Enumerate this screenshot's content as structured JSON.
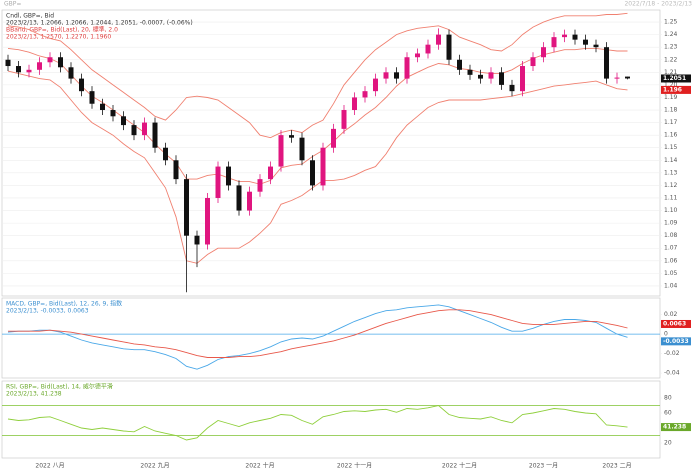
{
  "header": {
    "left": "GBP=",
    "right": "2022/7/18 - 2023/2/13"
  },
  "chart_data": [
    {
      "type": "candlestick",
      "legend": [
        "Cndl, GBP=, Bid",
        "2023/2/13, 1.2066, 1.2066, 1.2044, 1.2051, -0.0007, (-0.06%)",
        "BBand, GBP=, Bid(Last), 20, 標準, 2.0",
        "2023/2/13, 1.2570, 1.2270, 1.1960"
      ],
      "categories": [
        null,
        null,
        null,
        null,
        "2022 八月",
        null,
        null,
        null,
        null,
        null,
        null,
        null,
        null,
        null,
        "2022 九月",
        null,
        null,
        null,
        null,
        null,
        null,
        null,
        null,
        null,
        "2022 十月",
        null,
        null,
        null,
        null,
        null,
        null,
        null,
        null,
        "2022 十一月",
        null,
        null,
        null,
        null,
        null,
        null,
        null,
        null,
        null,
        "2022 十二月",
        null,
        null,
        null,
        null,
        null,
        null,
        null,
        "2023 一月",
        null,
        null,
        null,
        null,
        null,
        null,
        "2023 二月",
        null
      ],
      "open": [
        1.22,
        1.215,
        1.21,
        1.212,
        1.218,
        1.222,
        1.214,
        1.205,
        1.195,
        1.185,
        1.18,
        1.175,
        1.168,
        1.16,
        1.17,
        1.15,
        1.14,
        1.125,
        1.08,
        1.073,
        1.11,
        1.135,
        1.12,
        1.1,
        1.115,
        1.125,
        1.135,
        1.16,
        1.158,
        1.14,
        1.12,
        1.15,
        1.165,
        1.18,
        1.19,
        1.195,
        1.205,
        1.21,
        1.205,
        1.222,
        1.225,
        1.232,
        1.24,
        1.22,
        1.212,
        1.208,
        1.205,
        1.21,
        1.2,
        1.195,
        1.215,
        1.222,
        1.23,
        1.238,
        1.24,
        1.236,
        1.232,
        1.23,
        1.205,
        1.2066
      ],
      "high": [
        1.224,
        1.219,
        1.216,
        1.222,
        1.226,
        1.226,
        1.218,
        1.209,
        1.199,
        1.189,
        1.184,
        1.179,
        1.172,
        1.174,
        1.174,
        1.154,
        1.144,
        1.129,
        1.084,
        1.114,
        1.139,
        1.139,
        1.124,
        1.119,
        1.129,
        1.139,
        1.164,
        1.164,
        1.162,
        1.144,
        1.154,
        1.169,
        1.184,
        1.194,
        1.199,
        1.209,
        1.214,
        1.214,
        1.226,
        1.229,
        1.236,
        1.245,
        1.244,
        1.224,
        1.216,
        1.212,
        1.214,
        1.214,
        1.204,
        1.219,
        1.226,
        1.234,
        1.242,
        1.244,
        1.244,
        1.24,
        1.236,
        1.234,
        1.2098,
        1.2066
      ],
      "low": [
        1.211,
        1.206,
        1.206,
        1.208,
        1.214,
        1.21,
        1.201,
        1.191,
        1.181,
        1.176,
        1.171,
        1.164,
        1.156,
        1.156,
        1.146,
        1.136,
        1.121,
        1.035,
        1.055,
        1.069,
        1.106,
        1.116,
        1.096,
        1.096,
        1.111,
        1.121,
        1.131,
        1.154,
        1.136,
        1.116,
        1.116,
        1.146,
        1.161,
        1.176,
        1.186,
        1.191,
        1.201,
        1.201,
        1.201,
        1.218,
        1.221,
        1.228,
        1.216,
        1.208,
        1.204,
        1.201,
        1.201,
        1.196,
        1.191,
        1.191,
        1.211,
        1.218,
        1.226,
        1.234,
        1.232,
        1.228,
        1.226,
        1.201,
        1.201,
        1.2044
      ],
      "close": [
        1.215,
        1.21,
        1.212,
        1.218,
        1.222,
        1.214,
        1.205,
        1.195,
        1.185,
        1.18,
        1.175,
        1.168,
        1.16,
        1.17,
        1.15,
        1.14,
        1.125,
        1.08,
        1.073,
        1.11,
        1.135,
        1.12,
        1.1,
        1.115,
        1.125,
        1.135,
        1.16,
        1.158,
        1.14,
        1.12,
        1.15,
        1.165,
        1.18,
        1.19,
        1.195,
        1.205,
        1.21,
        1.205,
        1.222,
        1.225,
        1.232,
        1.24,
        1.22,
        1.212,
        1.208,
        1.205,
        1.21,
        1.2,
        1.195,
        1.215,
        1.222,
        1.23,
        1.238,
        1.24,
        1.236,
        1.232,
        1.23,
        1.205,
        1.2058,
        1.2051
      ],
      "up_color": "#e0157f",
      "down_color": "#111111",
      "series": [
        {
          "color": "#f08070",
          "values": [
            1.247,
            1.246,
            1.244,
            1.24,
            1.237,
            1.235,
            1.228,
            1.22,
            1.212,
            1.206,
            1.2,
            1.194,
            1.188,
            1.182,
            1.175,
            1.172,
            1.18,
            1.19,
            1.191,
            1.19,
            1.188,
            1.182,
            1.176,
            1.17,
            1.16,
            1.158,
            1.162,
            1.164,
            1.162,
            1.168,
            1.172,
            1.185,
            1.2,
            1.21,
            1.22,
            1.228,
            1.234,
            1.24,
            1.243,
            1.245,
            1.246,
            1.247,
            1.244,
            1.238,
            1.235,
            1.232,
            1.228,
            1.227,
            1.232,
            1.24,
            1.246,
            1.25,
            1.253,
            1.255,
            1.255,
            1.255,
            1.255,
            1.256,
            1.256,
            1.257
          ]
        },
        {
          "color": "#f08070",
          "values": [
            1.229,
            1.228,
            1.226,
            1.223,
            1.221,
            1.217,
            1.208,
            1.199,
            1.191,
            1.186,
            1.18,
            1.174,
            1.168,
            1.162,
            1.153,
            1.145,
            1.138,
            1.125,
            1.125,
            1.128,
            1.129,
            1.126,
            1.123,
            1.123,
            1.121,
            1.124,
            1.134,
            1.136,
            1.137,
            1.143,
            1.148,
            1.155,
            1.163,
            1.169,
            1.176,
            1.182,
            1.19,
            1.199,
            1.206,
            1.21,
            1.214,
            1.217,
            1.216,
            1.213,
            1.212,
            1.21,
            1.209,
            1.209,
            1.212,
            1.217,
            1.221,
            1.224,
            1.226,
            1.228,
            1.228,
            1.229,
            1.229,
            1.228,
            1.227,
            1.227
          ]
        },
        {
          "color": "#f08070",
          "values": [
            1.211,
            1.209,
            1.207,
            1.205,
            1.204,
            1.198,
            1.188,
            1.178,
            1.17,
            1.165,
            1.16,
            1.153,
            1.147,
            1.142,
            1.13,
            1.118,
            1.095,
            1.06,
            1.058,
            1.065,
            1.07,
            1.07,
            1.07,
            1.075,
            1.082,
            1.09,
            1.105,
            1.108,
            1.112,
            1.118,
            1.124,
            1.124,
            1.125,
            1.128,
            1.132,
            1.135,
            1.145,
            1.158,
            1.168,
            1.175,
            1.182,
            1.186,
            1.188,
            1.188,
            1.188,
            1.188,
            1.189,
            1.19,
            1.191,
            1.193,
            1.195,
            1.197,
            1.199,
            1.2,
            1.201,
            1.202,
            1.203,
            1.2,
            1.197,
            1.196
          ]
        }
      ],
      "ylim": [
        1.032,
        1.258
      ],
      "yticks": [
        1.04,
        1.05,
        1.06,
        1.07,
        1.08,
        1.09,
        {
          "value": 1.1,
          "label": "1.10"
        },
        1.11,
        1.12,
        1.13,
        1.14,
        1.15,
        1.16,
        1.17,
        1.18,
        1.19,
        {
          "value": 1.2,
          "label": "1.20"
        },
        1.21,
        1.22,
        1.23,
        1.24,
        1.25
      ],
      "grid": true
    },
    {
      "type": "line",
      "legend": [
        "MACD, GBP=, Bid(Last), 12, 26, 9, 指数",
        "2023/2/13, -0.0033, 0.0063"
      ],
      "series": [
        {
          "color": "#4aa8e8",
          "values": [
            0.002,
            0.003,
            0.003,
            0.004,
            0.004,
            0.002,
            -0.002,
            -0.006,
            -0.009,
            -0.011,
            -0.013,
            -0.015,
            -0.016,
            -0.016,
            -0.018,
            -0.021,
            -0.025,
            -0.033,
            -0.036,
            -0.032,
            -0.026,
            -0.023,
            -0.022,
            -0.02,
            -0.017,
            -0.013,
            -0.008,
            -0.005,
            -0.004,
            -0.005,
            -0.002,
            0.003,
            0.008,
            0.013,
            0.017,
            0.021,
            0.024,
            0.025,
            0.027,
            0.028,
            0.029,
            0.03,
            0.028,
            0.024,
            0.02,
            0.016,
            0.012,
            0.007,
            0.003,
            0.003,
            0.006,
            0.01,
            0.013,
            0.015,
            0.015,
            0.014,
            0.012,
            0.006,
            0.0,
            -0.0033
          ]
        },
        {
          "color": "#e8584a",
          "values": [
            0.003,
            0.003,
            0.003,
            0.003,
            0.004,
            0.003,
            0.002,
            0.0,
            -0.002,
            -0.004,
            -0.006,
            -0.008,
            -0.01,
            -0.011,
            -0.013,
            -0.014,
            -0.016,
            -0.019,
            -0.022,
            -0.024,
            -0.024,
            -0.024,
            -0.023,
            -0.023,
            -0.022,
            -0.02,
            -0.018,
            -0.015,
            -0.013,
            -0.011,
            -0.009,
            -0.007,
            -0.004,
            -0.001,
            0.003,
            0.007,
            0.011,
            0.014,
            0.017,
            0.02,
            0.022,
            0.024,
            0.025,
            0.025,
            0.024,
            0.022,
            0.02,
            0.017,
            0.014,
            0.011,
            0.01,
            0.01,
            0.01,
            0.011,
            0.012,
            0.013,
            0.013,
            0.011,
            0.009,
            0.0063
          ]
        }
      ],
      "ylim": [
        -0.045,
        0.035
      ],
      "yticks": [
        -0.04,
        -0.02,
        0,
        0.02
      ],
      "hlines": [
        0
      ],
      "hline_color": "#4aa8e8"
    },
    {
      "type": "line",
      "legend": [
        "RSI, GBP=, Bid(Last), 14, 威尔德平滑",
        "2023/2/13, 41.238"
      ],
      "series": [
        {
          "color": "#8fcf3c",
          "values": [
            52,
            50,
            51,
            54,
            55,
            50,
            45,
            40,
            38,
            40,
            38,
            36,
            35,
            42,
            36,
            33,
            30,
            24,
            27,
            40,
            50,
            46,
            42,
            47,
            50,
            53,
            58,
            57,
            50,
            45,
            55,
            58,
            62,
            63,
            62,
            64,
            65,
            61,
            66,
            65,
            67,
            70,
            58,
            54,
            53,
            52,
            55,
            50,
            47,
            58,
            60,
            63,
            66,
            65,
            62,
            60,
            59,
            44,
            43,
            41.238
          ]
        }
      ],
      "ylim": [
        0,
        100
      ],
      "yticks": [
        20,
        40,
        60,
        80
      ],
      "hlines": [
        70,
        30
      ],
      "hline_color": "#7cc230"
    }
  ]
}
